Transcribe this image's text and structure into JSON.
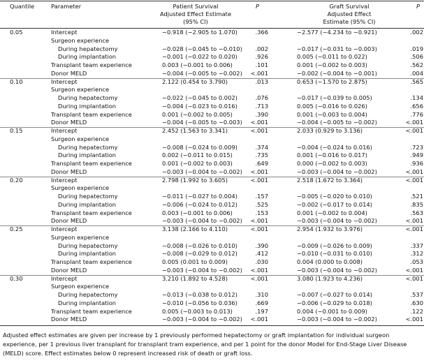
{
  "table": {
    "header": [
      [
        "Quantile"
      ],
      [
        "Parameter"
      ],
      [
        "Patient Survival",
        "Adjusted Effect Estimate",
        "(95% CI)"
      ],
      [
        "P"
      ],
      [
        "Graft Survival",
        "Adjusted Effect",
        "Estimate (95% CI)"
      ],
      [
        "P"
      ]
    ],
    "groups": [
      {
        "quantile": "0.05",
        "rows": [
          [
            "Intercept",
            "−0.918 (−2.905 to 1.070)",
            ".366",
            "−2.577 (−4.234 to −0.921)",
            ".002"
          ],
          [
            "Surgeon experience"
          ],
          [
            "During hepatectomy",
            "−0.028 (−0.045 to −0.010)",
            ".002",
            "−0.017 (−0.031 to −0.003)",
            ".019"
          ],
          [
            "During implantation",
            "−0.001 (−0.022 to 0.020)",
            ".926",
            "0.005 (−0.011 to 0.022)",
            ".506"
          ],
          [
            "Transplant team experience",
            "0.003 (−0.001 to 0.006)",
            ".101",
            "0.001 (−0.002 to 0.003)",
            ".562"
          ],
          [
            "Donor MELD",
            "−0.004 (−0.005 to −0.002)",
            "<.001",
            "−0.002 (−0.004 to −0.001)",
            ".004"
          ]
        ]
      },
      {
        "quantile": "0.10",
        "rows": [
          [
            "Intercept",
            "2.122 (0.454 to 3.790)",
            ".013",
            "0.653 (−1.570 to 2.875)",
            ".565"
          ],
          [
            "Surgeon experience"
          ],
          [
            "During hepatectomy",
            "−0.022 (−0.045 to 0.002)",
            ".076",
            "−0.017 (−0.039 to 0.005)",
            ".134"
          ],
          [
            "During implantation",
            "−0.004 (−0.023 to 0.016)",
            ".713",
            "0.005 (−0.016 to 0.026)",
            ".656"
          ],
          [
            "Transplant team experience",
            "0.001 (−0.002 to 0.005)",
            ".390",
            "0.001 (−0.003 to 0.004)",
            ".776"
          ],
          [
            "Donor MELD",
            "−0.004 (−0.005 to −0.003)",
            "<.001",
            "−0.004 (−0.005 to −0.002)",
            "<.001"
          ]
        ]
      },
      {
        "quantile": "0.15",
        "rows": [
          [
            "Intercept",
            "2.452 (1.563 to 3.341)",
            "<.001",
            "2.033 (0.929 to 3.136)",
            "<.001"
          ],
          [
            "Surgeon experience"
          ],
          [
            "During hepatectomy",
            "−0.008 (−0.024 to 0.009)",
            ".374",
            "−0.004 (−0.024 to 0.016)",
            ".723"
          ],
          [
            "During implantation",
            "0.002 (−0.011 to 0.015)",
            ".735",
            "0.001 (−0.016 to 0.017)",
            ".949"
          ],
          [
            "Transplant team experience",
            "0.001 (−0.002 to 0.003)",
            ".649",
            "0.000 (−0.002 to 0.003)",
            ".936"
          ],
          [
            "Donor MELD",
            "−0.003 (−0.004 to −0.002)",
            "<.001",
            "−0.003 (−0.004 to −0.002)",
            "<.001"
          ]
        ]
      },
      {
        "quantile": "0.20",
        "rows": [
          [
            "Intercept",
            "2.798 (1.992 to 3.605)",
            "<.001",
            "2.518 (1.672 to 3.364)",
            "<.001"
          ],
          [
            "Surgeon experience"
          ],
          [
            "During hepatectomy",
            "−0.011 (−0.027 to 0.004)",
            ".157",
            "−0.005 (−0.020 to 0.010)",
            ".521"
          ],
          [
            "During implantation",
            "−0.006 (−0.024 to 0.012)",
            ".525",
            "−0.002 (−0.017 to 0.014)",
            ".835"
          ],
          [
            "Transplant team experience",
            "0.003 (−0.001 to 0.006)",
            ".153",
            "0.001 (−0.002 to 0.004)",
            ".563"
          ],
          [
            "Donor MELD",
            "−0.003 (−0.004 to −0.002)",
            "<.001",
            "−0.003 (−0.004 to −0.002)",
            "<.001"
          ]
        ]
      },
      {
        "quantile": "0.25",
        "rows": [
          [
            "Intercept",
            "3.138 (2.166 to 4.110)",
            "<.001",
            "2.954 (1.932 to 3.976)",
            "<.001"
          ],
          [
            "Surgeon experience"
          ],
          [
            "During hepatectomy",
            "−0.008 (−0.026 to 0.010)",
            ".390",
            "−0.009 (−0.026 to 0.009)",
            ".337"
          ],
          [
            "During implantation",
            "−0.008 (−0.029 to 0.012)",
            ".412",
            "−0.010 (−0.031 to 0.010)",
            ".312"
          ],
          [
            "Transplant team experience",
            "0.005 (0.001 to 0.009)",
            ".030",
            "0.004 (0.000 to 0.008)",
            ".053"
          ],
          [
            "Donor MELD",
            "−0.003 (−0.004 to −0.002)",
            "<.001",
            "−0.003 (−0.004 to −0.002)",
            "<.001"
          ]
        ]
      },
      {
        "quantile": "0.30",
        "rows": [
          [
            "Intercept",
            "3.210 (1.892 to 4.528)",
            "<.001",
            "3.080 (1.923 to 4.236)",
            "<.001"
          ],
          [
            "Surgeon experience"
          ],
          [
            "During hepatectomy",
            "−0.013 (−0.038 to 0.012)",
            ".310",
            "−0.007 (−0.027 to 0.014)",
            ".537"
          ],
          [
            "During implantation",
            "−0.010 (−0.056 to 0.036)",
            ".669",
            "−0.006 (−0.029 to 0.018)",
            ".630"
          ],
          [
            "Transplant team experience",
            "0.005 (−0.003 to 0.013)",
            ".197",
            "0.004 (−0.001 to 0.009)",
            ".122"
          ],
          [
            "Donor MELD",
            "−0.003 (−0.004 to −0.002)",
            "<.001",
            "−0.003 (−0.004 to −0.002)",
            "<.001"
          ]
        ]
      }
    ]
  },
  "footnote": "Adjusted effect estimates are given per increase by 1 previously performed hepatectomy or graft implantation for individual surgeon experience, per 1 previous liver transplant for transplant tram experience, and per 1 point for the donor Model for End-Stage Liver Disease (MELD) score. Effect estimates below 0 represent increased risk of death or graft loss."
}
